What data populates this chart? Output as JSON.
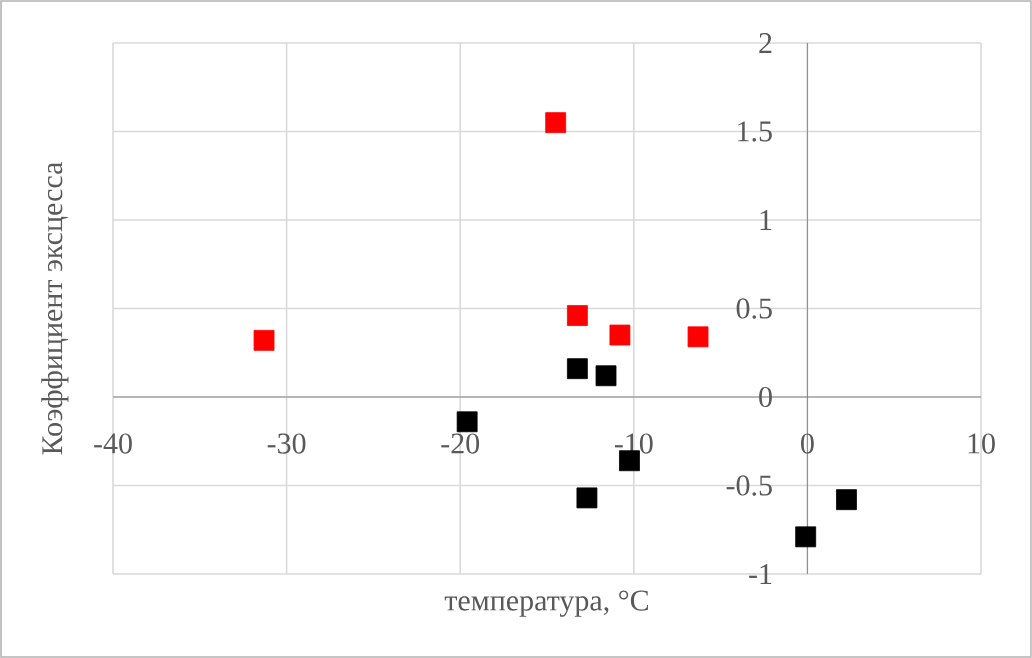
{
  "chart_data": {
    "type": "scatter",
    "xlabel": "температура, °C",
    "ylabel": "Коэффициент эксцесса",
    "xlim": [
      -40,
      10
    ],
    "ylim": [
      -1,
      2
    ],
    "xticks": [
      -40,
      -30,
      -20,
      -10,
      0,
      10
    ],
    "yticks": [
      -1,
      -0.5,
      0,
      0.5,
      1,
      1.5,
      2
    ],
    "grid": true,
    "marker": "square",
    "series": [
      {
        "color": "#ff0000",
        "x": [
          -31.3,
          -14.5,
          -13.25,
          -10.8,
          -6.3
        ],
        "values": [
          0.32,
          1.55,
          0.46,
          0.35,
          0.34
        ]
      },
      {
        "color": "#000000",
        "x": [
          -13.25,
          -11.6,
          -19.6,
          -10.25,
          -12.7,
          -0.1,
          2.25
        ],
        "values": [
          0.16,
          0.12,
          -0.14,
          -0.36,
          -0.57,
          -0.79,
          -0.58
        ]
      }
    ]
  }
}
